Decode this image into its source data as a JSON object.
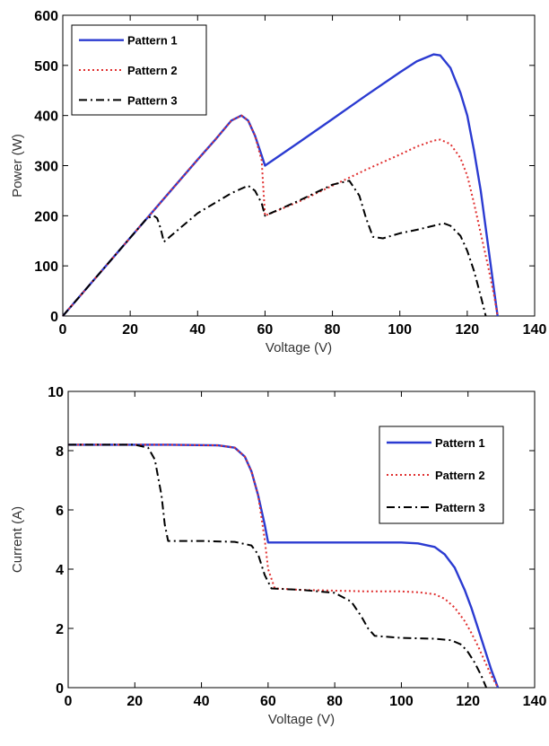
{
  "chart_data": [
    {
      "type": "line",
      "xlabel": "Voltage (V)",
      "ylabel": "Power (W)",
      "xlim": [
        0,
        140
      ],
      "ylim": [
        0,
        600
      ],
      "xticks": [
        "0",
        "20",
        "40",
        "60",
        "80",
        "100",
        "120",
        "140"
      ],
      "yticks": [
        "0",
        "100",
        "200",
        "300",
        "400",
        "500",
        "600"
      ],
      "grid": false,
      "legend_position": "top-left",
      "series": [
        {
          "name": "Pattern 1",
          "color": "#2b3bd1",
          "style": "solid",
          "x": [
            0,
            10,
            20,
            30,
            40,
            45,
            50,
            53,
            55,
            57,
            59,
            60,
            70,
            80,
            90,
            100,
            105,
            110,
            112,
            115,
            118,
            120,
            122,
            124,
            126,
            128,
            129
          ],
          "y": [
            0,
            78,
            156,
            234,
            312,
            350,
            390,
            400,
            390,
            360,
            320,
            300,
            346,
            393,
            440,
            486,
            508,
            522,
            520,
            495,
            445,
            400,
            330,
            250,
            150,
            50,
            0
          ]
        },
        {
          "name": "Pattern 2",
          "color": "#e03030",
          "style": "dotted",
          "x": [
            0,
            10,
            20,
            30,
            40,
            45,
            50,
            53,
            55,
            57,
            59,
            60,
            70,
            80,
            90,
            100,
            105,
            110,
            112,
            115,
            118,
            120,
            122,
            124,
            126,
            128,
            129
          ],
          "y": [
            0,
            78,
            156,
            234,
            312,
            350,
            390,
            400,
            390,
            360,
            310,
            200,
            228,
            260,
            292,
            322,
            338,
            350,
            352,
            343,
            315,
            280,
            225,
            165,
            105,
            40,
            0
          ]
        },
        {
          "name": "Pattern 3",
          "color": "#000000",
          "style": "dashdot",
          "x": [
            0,
            10,
            20,
            25,
            27,
            28,
            29,
            30,
            40,
            50,
            55,
            57,
            59,
            60,
            70,
            80,
            85,
            88,
            90,
            92,
            95,
            100,
            105,
            110,
            113,
            115,
            118,
            120,
            122,
            124,
            125.5
          ],
          "y": [
            0,
            78,
            156,
            195,
            200,
            195,
            175,
            148,
            205,
            245,
            260,
            250,
            225,
            200,
            230,
            262,
            270,
            240,
            195,
            158,
            155,
            165,
            172,
            180,
            185,
            180,
            160,
            130,
            90,
            40,
            0
          ]
        }
      ]
    },
    {
      "type": "line",
      "xlabel": "Voltage (V)",
      "ylabel": "Current (A)",
      "xlim": [
        0,
        140
      ],
      "ylim": [
        0,
        10
      ],
      "xticks": [
        "0",
        "20",
        "40",
        "60",
        "80",
        "100",
        "120",
        "140"
      ],
      "yticks": [
        "0",
        "2",
        "4",
        "6",
        "8",
        "10"
      ],
      "grid": false,
      "legend_position": "top-right",
      "series": [
        {
          "name": "Pattern 1",
          "color": "#2b3bd1",
          "style": "solid",
          "x": [
            0,
            30,
            45,
            50,
            53,
            55,
            57,
            59,
            60,
            70,
            90,
            100,
            105,
            110,
            113,
            116,
            119,
            121,
            123,
            125,
            127,
            129
          ],
          "y": [
            8.2,
            8.2,
            8.18,
            8.1,
            7.8,
            7.3,
            6.5,
            5.5,
            4.9,
            4.9,
            4.9,
            4.9,
            4.87,
            4.75,
            4.5,
            4.05,
            3.3,
            2.7,
            2.0,
            1.3,
            0.6,
            0
          ]
        },
        {
          "name": "Pattern 2",
          "color": "#e03030",
          "style": "dotted",
          "x": [
            0,
            30,
            45,
            50,
            53,
            55,
            57,
            59,
            60,
            62,
            70,
            90,
            100,
            105,
            110,
            113,
            116,
            119,
            121,
            123,
            125,
            127,
            129
          ],
          "y": [
            8.2,
            8.2,
            8.18,
            8.1,
            7.8,
            7.3,
            6.5,
            5.0,
            4.0,
            3.35,
            3.3,
            3.25,
            3.25,
            3.22,
            3.15,
            3.0,
            2.7,
            2.25,
            1.85,
            1.4,
            0.9,
            0.4,
            0
          ]
        },
        {
          "name": "Pattern 3",
          "color": "#000000",
          "style": "dashdot",
          "x": [
            0,
            20,
            24,
            26,
            28,
            29,
            30,
            40,
            50,
            55,
            57,
            59,
            61,
            70,
            80,
            85,
            88,
            90,
            92,
            100,
            110,
            115,
            118,
            120,
            122,
            124,
            125.5
          ],
          "y": [
            8.2,
            8.2,
            8.1,
            7.7,
            6.5,
            5.5,
            4.95,
            4.95,
            4.92,
            4.8,
            4.5,
            3.8,
            3.35,
            3.3,
            3.2,
            2.9,
            2.4,
            2.0,
            1.75,
            1.68,
            1.65,
            1.6,
            1.45,
            1.2,
            0.85,
            0.4,
            0
          ]
        }
      ]
    }
  ]
}
